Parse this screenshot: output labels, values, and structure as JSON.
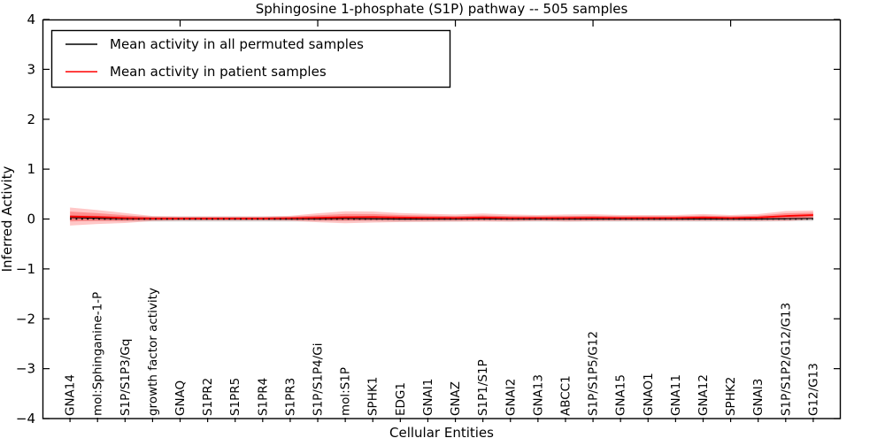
{
  "chart_data": {
    "type": "line",
    "title": "Sphingosine 1-phosphate (S1P) pathway -- 505 samples",
    "xlabel": "Cellular Entities",
    "ylabel": "Inferred Activity",
    "ylim": [
      -4,
      4
    ],
    "yticks": [
      -4,
      -3,
      -2,
      -1,
      0,
      1,
      2,
      3,
      4
    ],
    "ytick_labels": [
      "−4",
      "−3",
      "−2",
      "−1",
      "0",
      "1",
      "2",
      "3",
      "4"
    ],
    "top_tick_indices": [
      4,
      9,
      14,
      19,
      24
    ],
    "grid": false,
    "legend_position": "upper left",
    "categories": [
      "GNA14",
      "mol:Sphinganine-1-P",
      "S1P/S1P3/Gq",
      "growth factor activity",
      "GNAQ",
      "S1PR2",
      "S1PR5",
      "S1PR4",
      "S1PR3",
      "S1P/S1P4/Gi",
      "mol:S1P",
      "SPHK1",
      "EDG1",
      "GNAI1",
      "GNAZ",
      "S1P1/S1P",
      "GNAI2",
      "GNA13",
      "ABCC1",
      "S1P/S1P5/G12",
      "GNA15",
      "GNAO1",
      "GNA11",
      "GNA12",
      "SPHK2",
      "GNAI3",
      "S1P/S1P2/G12/G13",
      "G12/G13"
    ],
    "series": [
      {
        "name": "Mean activity in all permuted samples",
        "color": "#000000",
        "band_color": "#bbbbbb",
        "values": [
          0.03,
          0.015,
          0.005,
          0.0,
          0.0,
          0.0,
          0.0,
          0.0,
          0.0,
          0.005,
          0.01,
          0.005,
          0.0,
          0.0,
          0.0,
          0.005,
          0.0,
          0.0,
          0.0,
          0.0,
          0.0,
          0.0,
          0.0,
          0.0,
          0.0,
          0.0,
          0.005,
          0.01
        ],
        "band_halfwidth": [
          0.05,
          0.05,
          0.05,
          0.05,
          0.05,
          0.05,
          0.05,
          0.05,
          0.05,
          0.05,
          0.05,
          0.05,
          0.05,
          0.05,
          0.05,
          0.05,
          0.05,
          0.05,
          0.05,
          0.05,
          0.05,
          0.05,
          0.05,
          0.05,
          0.05,
          0.05,
          0.05,
          0.05
        ]
      },
      {
        "name": "Mean activity in patient samples",
        "color": "#ff0000",
        "band_color": "#ff0000",
        "values": [
          0.05,
          0.04,
          0.02,
          0.01,
          0.01,
          0.01,
          0.01,
          0.01,
          0.015,
          0.025,
          0.035,
          0.04,
          0.03,
          0.025,
          0.02,
          0.03,
          0.02,
          0.02,
          0.02,
          0.025,
          0.02,
          0.02,
          0.02,
          0.03,
          0.02,
          0.03,
          0.06,
          0.08
        ],
        "band_halfwidth": [
          0.18,
          0.14,
          0.1,
          0.05,
          0.04,
          0.04,
          0.04,
          0.04,
          0.05,
          0.09,
          0.12,
          0.11,
          0.09,
          0.08,
          0.07,
          0.08,
          0.07,
          0.06,
          0.07,
          0.07,
          0.06,
          0.06,
          0.06,
          0.07,
          0.06,
          0.07,
          0.1,
          0.09
        ]
      }
    ],
    "zero_line": {
      "style": "dotted",
      "color": "#000000",
      "y": 0
    }
  }
}
